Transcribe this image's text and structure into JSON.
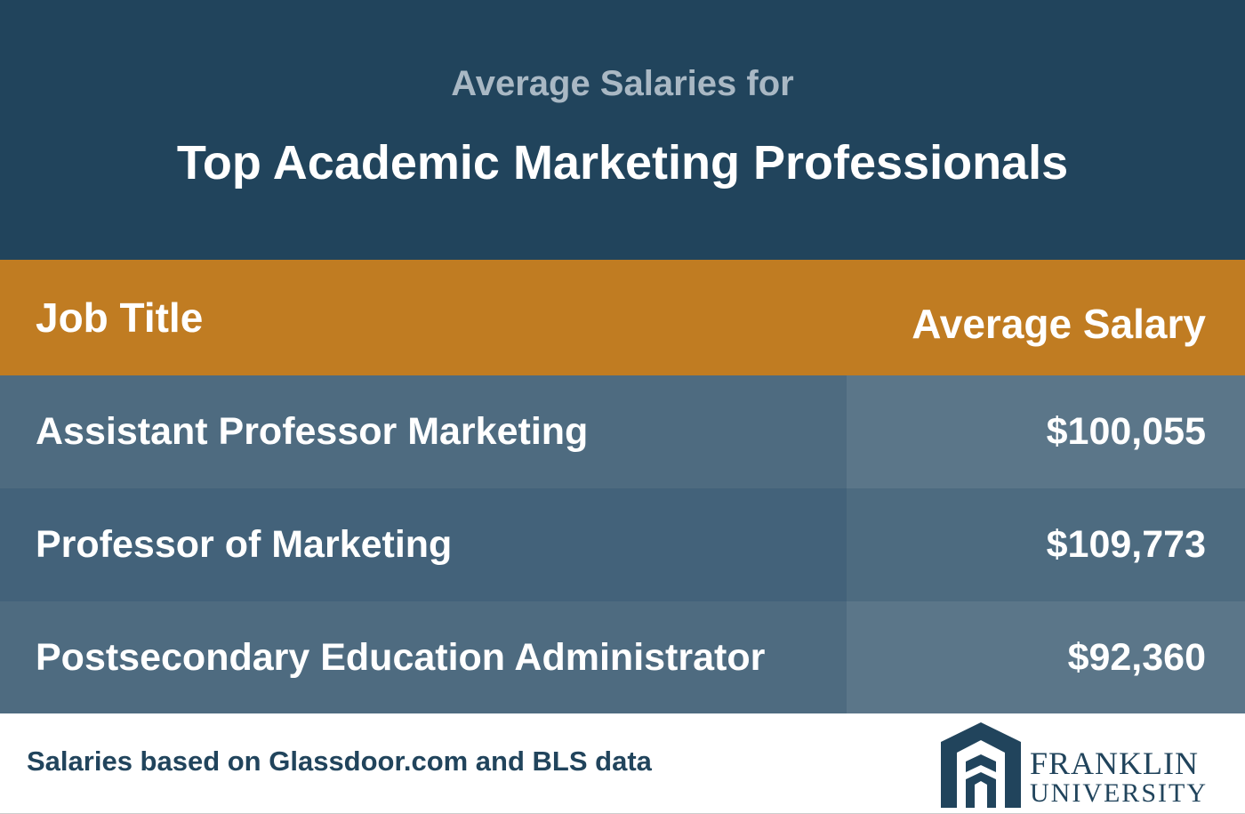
{
  "header": {
    "subtitle": "Average Salaries for",
    "title": "Top Academic Marketing Professionals"
  },
  "table": {
    "columns": [
      "Job Title",
      "Average Salary"
    ],
    "rows": [
      [
        "Assistant Professor Marketing",
        "$100,055"
      ],
      [
        "Professor of Marketing",
        "$109,773"
      ],
      [
        "Postsecondary Education Administrator",
        "$92,360"
      ]
    ]
  },
  "footer": {
    "note": "Salaries based on Glassdoor.com and BLS data",
    "logo": [
      "FRANKLIN",
      "UNIVERSITY"
    ]
  }
}
